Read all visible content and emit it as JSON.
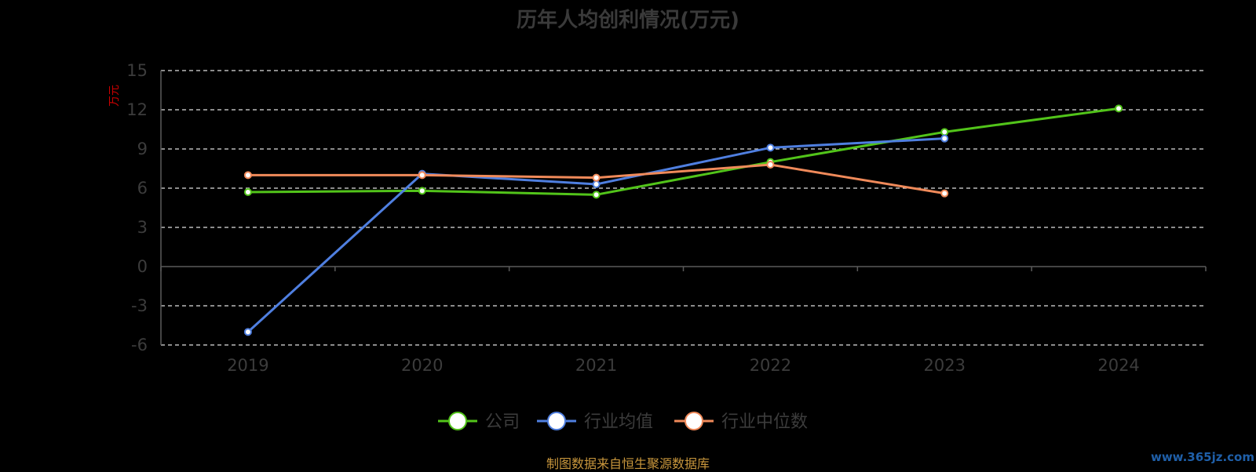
{
  "chart_data": {
    "type": "line",
    "title": "历年人均创利情况(万元)",
    "ylabel": "万元",
    "categories": [
      "2019",
      "2020",
      "2021",
      "2022",
      "2023",
      "2024"
    ],
    "ylim": [
      -6,
      15
    ],
    "yticks": [
      -6,
      -3,
      0,
      3,
      6,
      9,
      12,
      15
    ],
    "grid": true,
    "legend_position": "bottom",
    "series": [
      {
        "name": "公司",
        "color": "#52c41a",
        "values": [
          5.7,
          5.8,
          5.5,
          8.0,
          10.3,
          12.1
        ]
      },
      {
        "name": "行业均值",
        "color": "#4f7fe0",
        "values": [
          -5.0,
          7.1,
          6.3,
          9.1,
          9.8,
          null
        ]
      },
      {
        "name": "行业中位数",
        "color": "#f08a5a",
        "values": [
          7.0,
          7.0,
          6.8,
          7.8,
          5.6,
          null
        ]
      }
    ]
  },
  "footer": {
    "source": "制图数据来自恒生聚源数据库",
    "watermark": "www.365jz.com"
  }
}
